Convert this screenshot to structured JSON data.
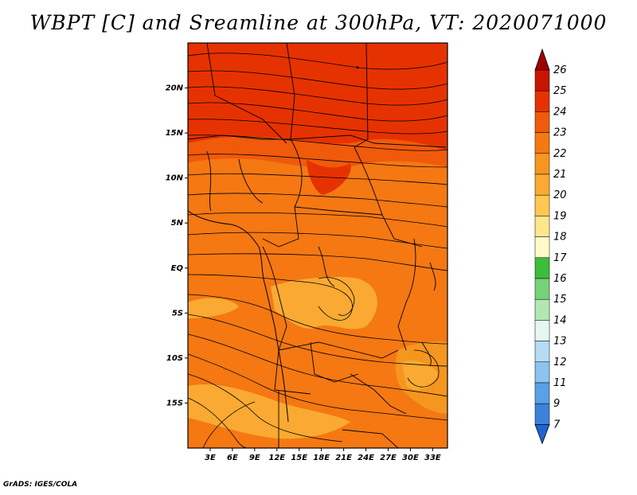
{
  "title": "WBPT [C] and Sreamline at 300hPa, VT: 2020071000",
  "credit": "GrADS: IGES/COLA",
  "map": {
    "lon_range": [
      0,
      35
    ],
    "lat_range": [
      -20,
      25
    ],
    "lat_ticks": [
      {
        "value": 20,
        "label": "20N"
      },
      {
        "value": 15,
        "label": "15N"
      },
      {
        "value": 10,
        "label": "10N"
      },
      {
        "value": 5,
        "label": "5N"
      },
      {
        "value": 0,
        "label": "EQ"
      },
      {
        "value": -5,
        "label": "5S"
      },
      {
        "value": -10,
        "label": "10S"
      },
      {
        "value": -15,
        "label": "15S"
      }
    ],
    "lon_ticks": [
      {
        "value": 3,
        "label": "3E"
      },
      {
        "value": 6,
        "label": "6E"
      },
      {
        "value": 9,
        "label": "9E"
      },
      {
        "value": 12,
        "label": "12E"
      },
      {
        "value": 15,
        "label": "15E"
      },
      {
        "value": 18,
        "label": "18E"
      },
      {
        "value": 21,
        "label": "21E"
      },
      {
        "value": 24,
        "label": "24E"
      },
      {
        "value": 27,
        "label": "27E"
      },
      {
        "value": 30,
        "label": "30E"
      },
      {
        "value": 33,
        "label": "33E"
      }
    ]
  },
  "colorbar": {
    "levels": [
      "26",
      "25",
      "24",
      "23",
      "22",
      "21",
      "20",
      "19",
      "18",
      "17",
      "16",
      "15",
      "14",
      "13",
      "12",
      "11",
      "9",
      "7"
    ],
    "colors": [
      "#a00000",
      "#c81400",
      "#e63200",
      "#f05a0a",
      "#f57812",
      "#f5961e",
      "#faaa32",
      "#ffc850",
      "#ffe68c",
      "#fffac8",
      "#3cbe3c",
      "#78d278",
      "#b4e6b4",
      "#e6f6f0",
      "#b4dcf5",
      "#8cc3f0",
      "#5aa0e6",
      "#3c82dc",
      "#1e64d2"
    ],
    "over_color": "#a00000",
    "under_color": "#1e64d2"
  }
}
